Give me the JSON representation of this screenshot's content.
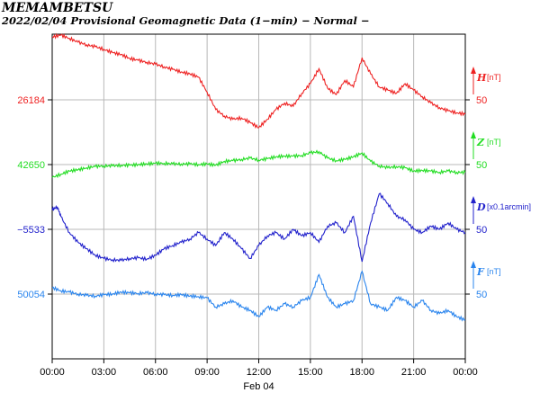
{
  "title": "MEMAMBETSU",
  "subtitle": "2022/02/04  Provisional Geomagnetic Data (1−min)  − Normal −",
  "chart_data": {
    "type": "line",
    "x_tick_labels": [
      "00:00",
      "03:00",
      "06:00",
      "09:00",
      "12:00",
      "15:00",
      "18:00",
      "21:00",
      "00:00"
    ],
    "x_sublabel": "Feb 04",
    "xlim_hours": [
      0,
      24
    ],
    "grid": true,
    "series": [
      {
        "name": "H",
        "unit": "[nT]",
        "color": "#ee2222",
        "base": "26184",
        "scale": "50",
        "points": [
          [
            0,
            97
          ],
          [
            0.5,
            100
          ],
          [
            1,
            95
          ],
          [
            1.5,
            89
          ],
          [
            2,
            85
          ],
          [
            2.5,
            82
          ],
          [
            3,
            78
          ],
          [
            3.5,
            73
          ],
          [
            4,
            70
          ],
          [
            4.5,
            64
          ],
          [
            5,
            61
          ],
          [
            5.5,
            58
          ],
          [
            6,
            55
          ],
          [
            6.5,
            51
          ],
          [
            7,
            47
          ],
          [
            7.5,
            43
          ],
          [
            8,
            40
          ],
          [
            8.5,
            35
          ],
          [
            9,
            12
          ],
          [
            9.5,
            -15
          ],
          [
            10,
            -25
          ],
          [
            10.5,
            -30
          ],
          [
            11,
            -28
          ],
          [
            11.5,
            -35
          ],
          [
            12,
            -43
          ],
          [
            12.5,
            -30
          ],
          [
            13,
            -15
          ],
          [
            13.5,
            -5
          ],
          [
            14,
            -10
          ],
          [
            14.5,
            10
          ],
          [
            15,
            25
          ],
          [
            15.5,
            48
          ],
          [
            16,
            18
          ],
          [
            16.5,
            8
          ],
          [
            17,
            30
          ],
          [
            17.5,
            20
          ],
          [
            18,
            65
          ],
          [
            18.5,
            40
          ],
          [
            19,
            20
          ],
          [
            19.5,
            15
          ],
          [
            20,
            10
          ],
          [
            20.5,
            25
          ],
          [
            21,
            15
          ],
          [
            21.5,
            5
          ],
          [
            22,
            -5
          ],
          [
            22.5,
            -12
          ],
          [
            23,
            -17
          ],
          [
            23.5,
            -20
          ],
          [
            24,
            -22
          ]
        ]
      },
      {
        "name": "Z",
        "unit": "[nT]",
        "color": "#22dd22",
        "base": "42650",
        "scale": "50",
        "points": [
          [
            0,
            -20
          ],
          [
            0.5,
            -15
          ],
          [
            1,
            -10
          ],
          [
            1.5,
            -8
          ],
          [
            2,
            -5
          ],
          [
            2.5,
            -3
          ],
          [
            3,
            -2
          ],
          [
            3.5,
            -2
          ],
          [
            4,
            -1
          ],
          [
            4.5,
            -1
          ],
          [
            5,
            0
          ],
          [
            5.5,
            1
          ],
          [
            6,
            2
          ],
          [
            6.5,
            2
          ],
          [
            7,
            1
          ],
          [
            7.5,
            1
          ],
          [
            8,
            1
          ],
          [
            8.5,
            0
          ],
          [
            9,
            1
          ],
          [
            9.5,
            -1
          ],
          [
            10,
            5
          ],
          [
            10.5,
            6
          ],
          [
            11,
            8
          ],
          [
            11.5,
            10
          ],
          [
            12,
            7
          ],
          [
            12.5,
            9
          ],
          [
            13,
            12
          ],
          [
            13.5,
            13
          ],
          [
            14,
            13
          ],
          [
            14.5,
            14
          ],
          [
            15,
            18
          ],
          [
            15.5,
            20
          ],
          [
            16,
            10
          ],
          [
            16.5,
            6
          ],
          [
            17,
            8
          ],
          [
            17.5,
            12
          ],
          [
            18,
            18
          ],
          [
            18.5,
            5
          ],
          [
            19,
            -2
          ],
          [
            19.5,
            -5
          ],
          [
            20,
            -3
          ],
          [
            20.5,
            -5
          ],
          [
            21,
            -10
          ],
          [
            21.5,
            -9
          ],
          [
            22,
            -10
          ],
          [
            22.5,
            -12
          ],
          [
            23,
            -10
          ],
          [
            23.5,
            -12
          ],
          [
            24,
            -12
          ]
        ]
      },
      {
        "name": "D",
        "unit": "[x0.1arcmin]",
        "color": "#2222cc",
        "base": "−5533",
        "scale": "50",
        "points": [
          [
            0,
            30
          ],
          [
            0.3,
            35
          ],
          [
            0.5,
            20
          ],
          [
            1,
            -5
          ],
          [
            1.5,
            -20
          ],
          [
            2,
            -30
          ],
          [
            2.5,
            -40
          ],
          [
            3,
            -45
          ],
          [
            3.5,
            -47
          ],
          [
            4,
            -48
          ],
          [
            4.5,
            -45
          ],
          [
            5,
            -44
          ],
          [
            5.5,
            -46
          ],
          [
            6,
            -40
          ],
          [
            6.5,
            -30
          ],
          [
            7,
            -25
          ],
          [
            7.5,
            -20
          ],
          [
            8,
            -15
          ],
          [
            8.5,
            -5
          ],
          [
            9,
            -15
          ],
          [
            9.5,
            -25
          ],
          [
            10,
            -5
          ],
          [
            10.5,
            -15
          ],
          [
            11,
            -30
          ],
          [
            11.5,
            -45
          ],
          [
            12,
            -25
          ],
          [
            12.5,
            -10
          ],
          [
            13,
            -5
          ],
          [
            13.5,
            -15
          ],
          [
            14,
            0
          ],
          [
            14.5,
            -10
          ],
          [
            15,
            -5
          ],
          [
            15.5,
            -20
          ],
          [
            16,
            5
          ],
          [
            16.5,
            10
          ],
          [
            17,
            -5
          ],
          [
            17.5,
            20
          ],
          [
            18,
            -50
          ],
          [
            18.5,
            10
          ],
          [
            19,
            55
          ],
          [
            19.5,
            40
          ],
          [
            20,
            20
          ],
          [
            20.5,
            15
          ],
          [
            21,
            0
          ],
          [
            21.5,
            -5
          ],
          [
            22,
            5
          ],
          [
            22.5,
            0
          ],
          [
            23,
            10
          ],
          [
            23.5,
            0
          ],
          [
            24,
            -5
          ]
        ]
      },
      {
        "name": "F",
        "unit": "[nT]",
        "color": "#2a85ee",
        "base": "50054",
        "scale": "50",
        "points": [
          [
            0,
            10
          ],
          [
            0.5,
            5
          ],
          [
            1,
            3
          ],
          [
            1.5,
            0
          ],
          [
            2,
            -2
          ],
          [
            2.5,
            -3
          ],
          [
            3,
            -1
          ],
          [
            3.5,
            0
          ],
          [
            4,
            3
          ],
          [
            4.5,
            2
          ],
          [
            5,
            1
          ],
          [
            5.5,
            2
          ],
          [
            6,
            0
          ],
          [
            6.5,
            -1
          ],
          [
            7,
            -2
          ],
          [
            7.5,
            -1
          ],
          [
            8,
            -3
          ],
          [
            8.5,
            -4
          ],
          [
            9,
            -6
          ],
          [
            9.5,
            -20
          ],
          [
            10,
            -15
          ],
          [
            10.5,
            -10
          ],
          [
            11,
            -20
          ],
          [
            11.5,
            -25
          ],
          [
            12,
            -35
          ],
          [
            12.5,
            -20
          ],
          [
            13,
            -25
          ],
          [
            13.5,
            -15
          ],
          [
            14,
            -20
          ],
          [
            14.5,
            -10
          ],
          [
            15,
            -5
          ],
          [
            15.5,
            30
          ],
          [
            16,
            -5
          ],
          [
            16.5,
            -20
          ],
          [
            17,
            -15
          ],
          [
            17.5,
            -10
          ],
          [
            18,
            35
          ],
          [
            18.5,
            -15
          ],
          [
            19,
            -20
          ],
          [
            19.5,
            -25
          ],
          [
            20,
            -5
          ],
          [
            20.5,
            -10
          ],
          [
            21,
            -20
          ],
          [
            21.5,
            -10
          ],
          [
            22,
            -25
          ],
          [
            22.5,
            -30
          ],
          [
            23,
            -25
          ],
          [
            23.5,
            -35
          ],
          [
            24,
            -40
          ]
        ]
      }
    ]
  }
}
